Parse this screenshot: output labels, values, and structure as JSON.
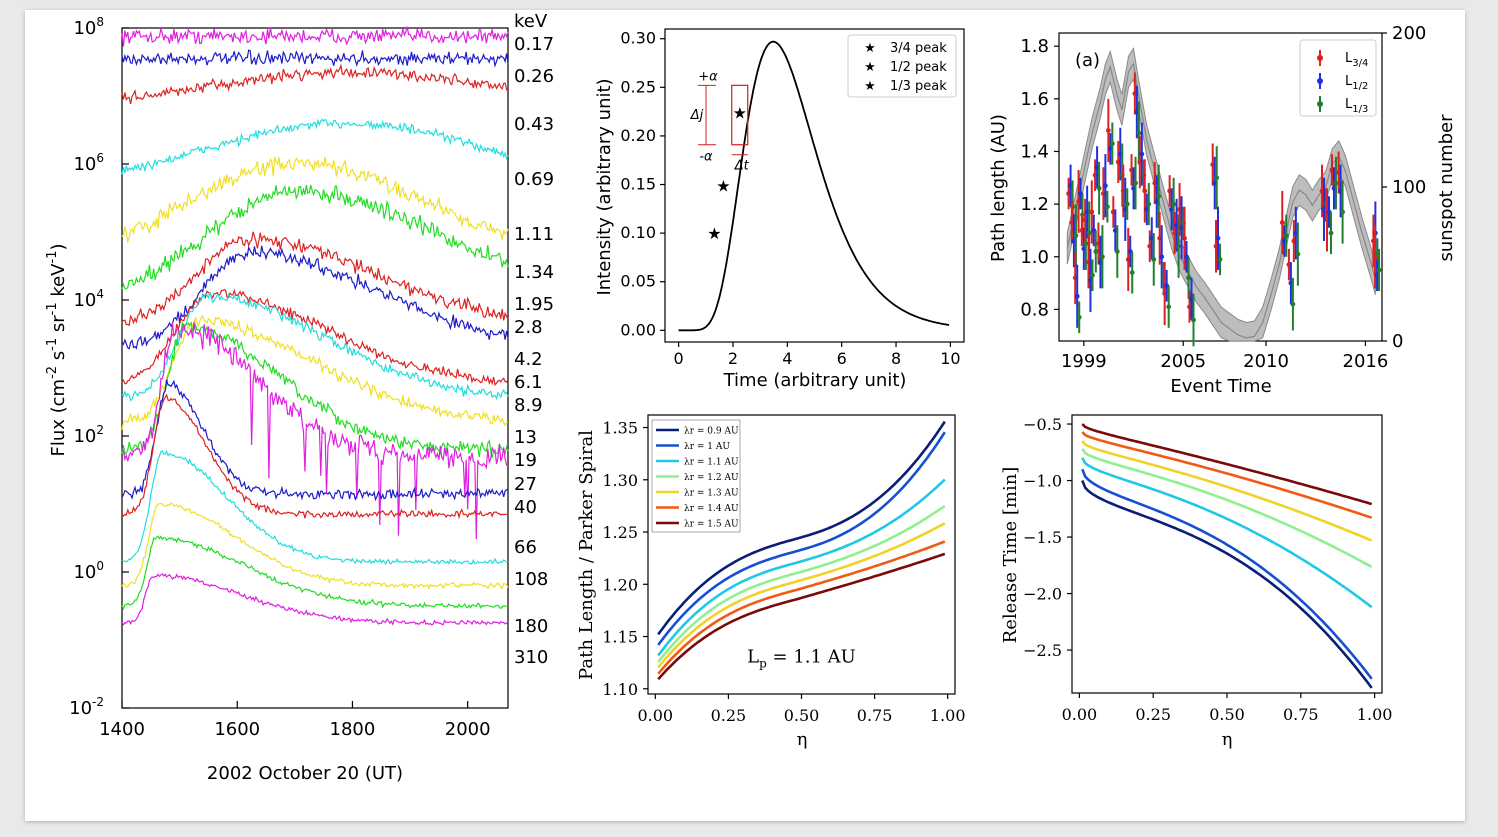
{
  "chart_data": [
    {
      "id": "a",
      "type": "line",
      "xlabel": "2002 October 20 (UT)",
      "ylabel_parts": [
        "Flux (cm",
        "-2",
        " s",
        "-1",
        " sr",
        "-1",
        " keV",
        "-1",
        ")"
      ],
      "xlim": [
        1400,
        2070
      ],
      "ylog_range": [
        -2,
        8
      ],
      "xticks": [
        1400,
        1600,
        1800,
        2000
      ],
      "yticks": [
        {
          "base": "10",
          "exp": "8"
        },
        {
          "base": "10",
          "exp": "6"
        },
        {
          "base": "10",
          "exp": "4"
        },
        {
          "base": "10",
          "exp": "2"
        },
        {
          "base": "10",
          "exp": "0"
        },
        {
          "base": "10",
          "exp": "-2"
        }
      ],
      "energy_unit": "keV",
      "series": [
        {
          "name": "0.17",
          "color": "#e020e0",
          "baseline": 7.88,
          "peak_t": 0,
          "peak_amp": 0,
          "rise": 0,
          "decay": 100,
          "noise": 0.09
        },
        {
          "name": "0.26",
          "color": "#1c1cc8",
          "baseline": 7.55,
          "peak_t": 0,
          "peak_amp": 0,
          "rise": 0,
          "decay": 100,
          "noise": 0.08
        },
        {
          "name": "0.43",
          "color": "#dd2222",
          "baseline": 6.9,
          "peak_t": 1780,
          "peak_amp": 0.45,
          "rise": 200,
          "decay": 250,
          "noise": 0.07
        },
        {
          "name": "0.69",
          "color": "#22dddd",
          "baseline": 5.6,
          "peak_t": 1790,
          "peak_amp": 1.0,
          "rise": 250,
          "decay": 250,
          "noise": 0.06
        },
        {
          "name": "1.11",
          "color": "#f0e020",
          "baseline": 4.4,
          "peak_t": 1700,
          "peak_amp": 1.6,
          "rise": 200,
          "decay": 250,
          "noise": 0.1
        },
        {
          "name": "1.34",
          "color": "#22dd22",
          "baseline": 4.0,
          "peak_t": 1700,
          "peak_amp": 1.6,
          "rise": 150,
          "decay": 250,
          "noise": 0.1
        },
        {
          "name": "1.95",
          "color": "#dd2222",
          "baseline": 3.6,
          "peak_t": 1620,
          "peak_amp": 1.3,
          "rise": 90,
          "decay": 220,
          "noise": 0.08
        },
        {
          "name": "2.8",
          "color": "#1c1cc8",
          "baseline": 3.3,
          "peak_t": 1620,
          "peak_amp": 1.4,
          "rise": 80,
          "decay": 220,
          "noise": 0.08
        },
        {
          "name": "4.2",
          "color": "#dd2222",
          "baseline": 2.75,
          "peak_t": 1555,
          "peak_amp": 1.35,
          "rise": 60,
          "decay": 200,
          "noise": 0.06
        },
        {
          "name": "6.1",
          "color": "#22dddd",
          "baseline": 2.55,
          "peak_t": 1550,
          "peak_amp": 1.5,
          "rise": 50,
          "decay": 200,
          "noise": 0.06
        },
        {
          "name": "8.9",
          "color": "#f0e020",
          "baseline": 2.2,
          "peak_t": 1530,
          "peak_amp": 1.5,
          "rise": 40,
          "decay": 200,
          "noise": 0.07
        },
        {
          "name": "13",
          "color": "#22dd22",
          "baseline": 1.8,
          "peak_t": 1510,
          "peak_amp": 1.8,
          "rise": 30,
          "decay": 160,
          "noise": 0.08
        },
        {
          "name": "19",
          "color": "#e020e0",
          "baseline": 1.7,
          "peak_t": 1495,
          "peak_amp": 1.9,
          "rise": 25,
          "decay": 140,
          "noise": 0.14
        },
        {
          "name": "27",
          "color": "#1c1cc8",
          "baseline": 1.15,
          "peak_t": 1480,
          "peak_amp": 1.6,
          "rise": 20,
          "decay": 60,
          "noise": 0.06
        },
        {
          "name": "40",
          "color": "#dd2222",
          "baseline": 0.85,
          "peak_t": 1475,
          "peak_amp": 1.7,
          "rise": 20,
          "decay": 70,
          "noise": 0.04
        },
        {
          "name": "66",
          "color": "#22dddd",
          "baseline": 0.15,
          "peak_t": 1470,
          "peak_amp": 1.6,
          "rise": 20,
          "decay": 110,
          "noise": 0.03
        },
        {
          "name": "108",
          "color": "#f0e020",
          "baseline": -0.2,
          "peak_t": 1465,
          "peak_amp": 1.2,
          "rise": 18,
          "decay": 130,
          "noise": 0.03
        },
        {
          "name": "180",
          "color": "#22dd22",
          "baseline": -0.5,
          "peak_t": 1460,
          "peak_amp": 1.0,
          "rise": 16,
          "decay": 150,
          "noise": 0.03
        },
        {
          "name": "310",
          "color": "#e020e0",
          "baseline": -0.75,
          "peak_t": 1455,
          "peak_amp": 0.7,
          "rise": 14,
          "decay": 150,
          "noise": 0.03
        }
      ]
    },
    {
      "id": "b",
      "type": "line",
      "xlabel": "Time (arbitrary unit)",
      "ylabel": "Intensity (arbitrary unit)",
      "xlim": [
        -0.5,
        10.5
      ],
      "ylim": [
        -0.012,
        0.31
      ],
      "xticks": [
        "0",
        "2",
        "4",
        "6",
        "8",
        "10"
      ],
      "yticks": [
        "0.00",
        "0.05",
        "0.10",
        "0.15",
        "0.20",
        "0.25",
        "0.30"
      ],
      "curve": {
        "peak_value": 0.297,
        "peak_time": 3.05,
        "start_time": 0,
        "end_time": 10
      },
      "legend": [
        {
          "label": "3/4 peak",
          "color": "#e02020",
          "x": 2.25,
          "y": 0.223
        },
        {
          "label": "1/2 peak",
          "color": "#2020e0",
          "x": 1.65,
          "y": 0.148
        },
        {
          "label": "1/3 peak",
          "color": "#208020",
          "x": 1.32,
          "y": 0.099
        }
      ],
      "annotations": {
        "plus": "+α",
        "minus": "-α",
        "dj": "Δj",
        "dt": "Δt",
        "color": "#d02020"
      }
    },
    {
      "id": "c",
      "type": "scatter",
      "panel_label": "(a)",
      "xlabel": "Event Time",
      "ylabel": "Path length (AU)",
      "ylabel_right": "sunspot number",
      "xlim": [
        1997.5,
        2017
      ],
      "ylim": [
        0.68,
        1.85
      ],
      "ylim_right": [
        0,
        200
      ],
      "xticks": [
        "1999",
        "2005",
        "2010",
        "2016"
      ],
      "yticks": [
        "0.8",
        "1.0",
        "1.2",
        "1.4",
        "1.6",
        "1.8"
      ],
      "yticks_right": [
        "0",
        "100",
        "200"
      ],
      "sunspot": [
        [
          1998.0,
          60
        ],
        [
          1998.5,
          85
        ],
        [
          1999.0,
          110
        ],
        [
          1999.5,
          135
        ],
        [
          2000.0,
          155
        ],
        [
          2000.3,
          170
        ],
        [
          2000.6,
          178
        ],
        [
          2001.0,
          160
        ],
        [
          2001.3,
          150
        ],
        [
          2001.7,
          175
        ],
        [
          2002.0,
          180
        ],
        [
          2002.3,
          160
        ],
        [
          2002.8,
          130
        ],
        [
          2003.3,
          110
        ],
        [
          2003.8,
          90
        ],
        [
          2004.3,
          70
        ],
        [
          2004.8,
          55
        ],
        [
          2005.3,
          45
        ],
        [
          2005.8,
          35
        ],
        [
          2006.3,
          28
        ],
        [
          2006.8,
          20
        ],
        [
          2007.3,
          12
        ],
        [
          2007.8,
          8
        ],
        [
          2008.3,
          4
        ],
        [
          2008.8,
          2
        ],
        [
          2009.3,
          3
        ],
        [
          2009.8,
          12
        ],
        [
          2010.3,
          30
        ],
        [
          2010.8,
          50
        ],
        [
          2011.2,
          70
        ],
        [
          2011.6,
          90
        ],
        [
          2012.0,
          98
        ],
        [
          2012.4,
          95
        ],
        [
          2012.8,
          88
        ],
        [
          2013.2,
          95
        ],
        [
          2013.6,
          100
        ],
        [
          2014.0,
          115
        ],
        [
          2014.4,
          120
        ],
        [
          2014.8,
          110
        ],
        [
          2015.3,
          90
        ],
        [
          2015.8,
          70
        ],
        [
          2016.3,
          52
        ],
        [
          2016.6,
          40
        ]
      ],
      "series": [
        {
          "name": "L",
          "sub": "3/4",
          "color": "#e02020",
          "offset": 0.03
        },
        {
          "name": "L",
          "sub": "1/2",
          "color": "#2030e0",
          "offset": 0.0
        },
        {
          "name": "L",
          "sub": "1/3",
          "color": "#208030",
          "offset": -0.04
        }
      ],
      "events": [
        [
          1998.2,
          1.25
        ],
        [
          1998.4,
          1.1
        ],
        [
          1998.6,
          0.85
        ],
        [
          1998.8,
          1.2
        ],
        [
          1999.0,
          1.05
        ],
        [
          1999.2,
          1.15
        ],
        [
          1999.4,
          0.95
        ],
        [
          1999.6,
          1.1
        ],
        [
          1999.8,
          1.3
        ],
        [
          2000.0,
          1.0
        ],
        [
          2000.3,
          1.25
        ],
        [
          2000.6,
          1.45
        ],
        [
          2000.9,
          1.1
        ],
        [
          2001.2,
          1.35
        ],
        [
          2001.5,
          1.2
        ],
        [
          2001.8,
          1.0
        ],
        [
          2002.0,
          1.3
        ],
        [
          2002.2,
          1.55
        ],
        [
          2002.5,
          1.35
        ],
        [
          2002.8,
          1.2
        ],
        [
          2003.1,
          1.05
        ],
        [
          2003.4,
          1.25
        ],
        [
          2003.7,
          1.0
        ],
        [
          2004.0,
          0.85
        ],
        [
          2004.3,
          1.2
        ],
        [
          2004.6,
          1.1
        ],
        [
          2004.9,
          1.15
        ],
        [
          2005.2,
          1.0
        ],
        [
          2005.5,
          0.8
        ],
        [
          2006.9,
          1.3
        ],
        [
          2007.1,
          1.05
        ],
        [
          2011.1,
          1.1
        ],
        [
          2011.5,
          0.9
        ],
        [
          2011.8,
          1.05
        ],
        [
          2013.5,
          1.2
        ],
        [
          2013.8,
          1.15
        ],
        [
          2014.1,
          1.3
        ],
        [
          2014.5,
          1.25
        ],
        [
          2016.6,
          1.05
        ],
        [
          2016.7,
          0.95
        ]
      ]
    },
    {
      "id": "d",
      "type": "line",
      "xlabel": "η",
      "ylabel": "Path Length / Parker Spiral",
      "xlim": [
        -0.025,
        1.025
      ],
      "ylim": [
        1.095,
        1.362
      ],
      "xticks": [
        "0.00",
        "0.25",
        "0.50",
        "0.75",
        "1.00"
      ],
      "yticks": [
        "1.10",
        "1.15",
        "1.20",
        "1.25",
        "1.30",
        "1.35"
      ],
      "annotation": {
        "text": "L",
        "sub": "p",
        "rest": " = 1.1 AU",
        "x": 0.5,
        "y": 1.125
      },
      "series": [
        {
          "name": "λr = 0.9 AU",
          "color": "#0a1e78",
          "y0": 1.148,
          "ymid": 1.245,
          "y1": 1.36
        },
        {
          "name": "λr = 1 AU",
          "color": "#1450d2",
          "y0": 1.138,
          "ymid": 1.233,
          "y1": 1.35
        },
        {
          "name": "λr = 1.1 AU",
          "color": "#1ec8e6",
          "y0": 1.128,
          "ymid": 1.222,
          "y1": 1.303
        },
        {
          "name": "λr = 1.2 AU",
          "color": "#8ef08e",
          "y0": 1.122,
          "ymid": 1.212,
          "y1": 1.277
        },
        {
          "name": "λr = 1.3 AU",
          "color": "#f0d228",
          "y0": 1.117,
          "ymid": 1.204,
          "y1": 1.26
        },
        {
          "name": "λr = 1.4 AU",
          "color": "#f05a14",
          "y0": 1.111,
          "ymid": 1.196,
          "y1": 1.242
        },
        {
          "name": "λr = 1.5 AU",
          "color": "#7a0a0a",
          "y0": 1.106,
          "ymid": 1.187,
          "y1": 1.23
        }
      ]
    },
    {
      "id": "e",
      "type": "line",
      "xlabel": "η",
      "ylabel": "Release Time [min]",
      "xlim": [
        -0.025,
        1.025
      ],
      "ylim": [
        -2.88,
        -0.42
      ],
      "xticks": [
        "0.00",
        "0.25",
        "0.50",
        "0.75",
        "1.00"
      ],
      "yticks": [
        "−0.5",
        "−1.0",
        "−1.5",
        "−2.0",
        "−2.5"
      ],
      "series": [
        {
          "name": "λr = 0.9 AU",
          "color": "#0a1e78",
          "y0": -1.0,
          "y1": -2.8,
          "k": 1.6
        },
        {
          "name": "λr = 1 AU",
          "color": "#1450d2",
          "y0": -0.9,
          "y1": -2.72,
          "k": 1.5
        },
        {
          "name": "λr = 1.1 AU",
          "color": "#1ec8e6",
          "y0": -0.8,
          "y1": -2.1,
          "k": 1.0
        },
        {
          "name": "λr = 1.2 AU",
          "color": "#8ef08e",
          "y0": -0.72,
          "y1": -1.75,
          "k": 0.8
        },
        {
          "name": "λr = 1.3 AU",
          "color": "#f0d228",
          "y0": -0.65,
          "y1": -1.52,
          "k": 0.6
        },
        {
          "name": "λr = 1.4 AU",
          "color": "#f05a14",
          "y0": -0.57,
          "y1": -1.32,
          "k": 0.45
        },
        {
          "name": "λr = 1.5 AU",
          "color": "#7a0a0a",
          "y0": -0.5,
          "y1": -1.2,
          "k": 0.35
        }
      ]
    }
  ]
}
